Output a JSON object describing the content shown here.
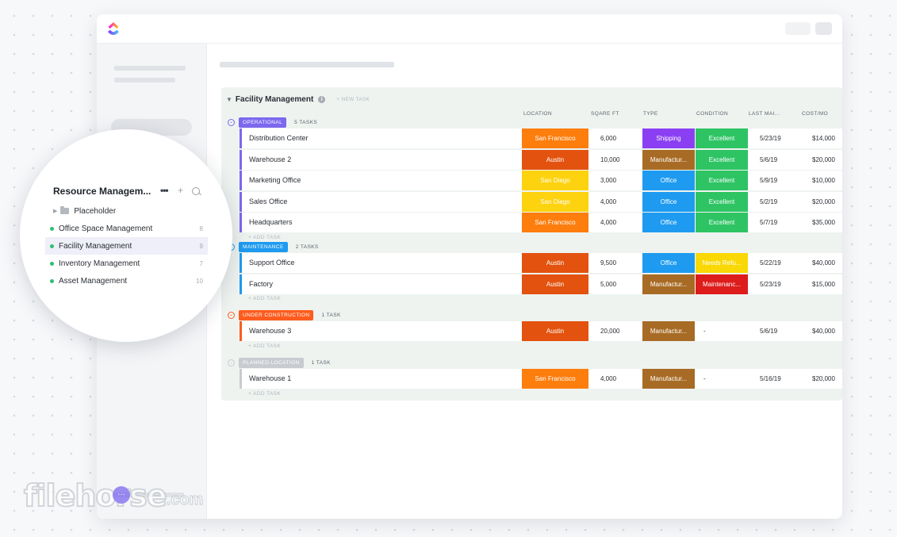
{
  "app": {
    "brand_colors": [
      "#8930fd",
      "#49ccf9",
      "#ff02f0",
      "#ffc800"
    ]
  },
  "board": {
    "title": "Facility Management",
    "new_task_label": "+ NEW TASK",
    "add_task_label": "+ ADD TASK",
    "columns": [
      "LOCATION",
      "SQARE FT",
      "TYPE",
      "CONDITION",
      "LAST MAI...",
      "COST/MO"
    ],
    "groups": [
      {
        "name": "OPERATIONAL",
        "count": "5 TASKS",
        "color": "#7b68ee",
        "tasks": [
          {
            "name": "Distribution Center",
            "location": "San Francisco",
            "sqft": "6,000",
            "type": "Shipping",
            "condition": "Excellent",
            "last_maint": "5/23/19",
            "cost": "$14,000"
          },
          {
            "name": "Warehouse 2",
            "location": "Austin",
            "sqft": "10,000",
            "type": "Manufactur...",
            "condition": "Excellent",
            "last_maint": "5/6/19",
            "cost": "$20,000"
          },
          {
            "name": "Marketing Office",
            "location": "San Diego",
            "sqft": "3,000",
            "type": "Office",
            "condition": "Excellent",
            "last_maint": "5/9/19",
            "cost": "$10,000"
          },
          {
            "name": "Sales Office",
            "location": "San Diego",
            "sqft": "4,000",
            "type": "Office",
            "condition": "Excellent",
            "last_maint": "5/2/19",
            "cost": "$20,000"
          },
          {
            "name": "Headquarters",
            "location": "San Francisco",
            "sqft": "4,000",
            "type": "Office",
            "condition": "Excellent",
            "last_maint": "5/7/19",
            "cost": "$35,000"
          }
        ]
      },
      {
        "name": "MAINTENANCE",
        "count": "2 TASKS",
        "color": "#1e9bf0",
        "tasks": [
          {
            "name": "Support Office",
            "location": "Austin",
            "sqft": "9,500",
            "type": "Office",
            "condition": "Needs Refu...",
            "last_maint": "5/22/19",
            "cost": "$40,000"
          },
          {
            "name": "Factory",
            "location": "Austin",
            "sqft": "5,000",
            "type": "Manufactur...",
            "condition": "Maintenanc...",
            "last_maint": "5/23/19",
            "cost": "$15,000"
          }
        ]
      },
      {
        "name": "UNDER CONSTRUCTION",
        "count": "1 TASK",
        "color": "#fd5c1e",
        "tasks": [
          {
            "name": "Warehouse 3",
            "location": "Austin",
            "sqft": "20,000",
            "type": "Manufactur...",
            "condition": "-",
            "last_maint": "5/6/19",
            "cost": "$40,000"
          }
        ]
      },
      {
        "name": "PLANNED LOCATION",
        "count": "1 TASK",
        "color": "#c8cbd0",
        "tasks": [
          {
            "name": "Warehouse 1",
            "location": "San Francisco",
            "sqft": "4,000",
            "type": "Manufactur...",
            "condition": "-",
            "last_maint": "5/16/19",
            "cost": "$20,000"
          }
        ]
      }
    ]
  },
  "chip_colors": {
    "location": {
      "San Francisco": "#fd7d0d",
      "Austin": "#e3520e",
      "San Diego": "#fdd20f"
    },
    "type": {
      "Shipping": "#8b3ff3",
      "Manufactur...": "#a86b25",
      "Office": "#1e9bf0"
    },
    "condition": {
      "Excellent": "#2ec464",
      "Needs Refu...": "#f9d806",
      "Maintenanc...": "#dd1c1c"
    }
  },
  "sidebar_zoom": {
    "title": "Resource Managem...",
    "more_icon": "more-icon",
    "add_icon": "plus-icon",
    "search_icon": "search-icon",
    "folder": "Placeholder",
    "items": [
      {
        "label": "Office Space Management",
        "count": "8"
      },
      {
        "label": "Facility Management",
        "count": "9"
      },
      {
        "label": "Inventory Management",
        "count": "7"
      },
      {
        "label": "Asset Management",
        "count": "10"
      }
    ]
  },
  "watermark": {
    "main": "filehorse",
    "suffix": ".com"
  }
}
